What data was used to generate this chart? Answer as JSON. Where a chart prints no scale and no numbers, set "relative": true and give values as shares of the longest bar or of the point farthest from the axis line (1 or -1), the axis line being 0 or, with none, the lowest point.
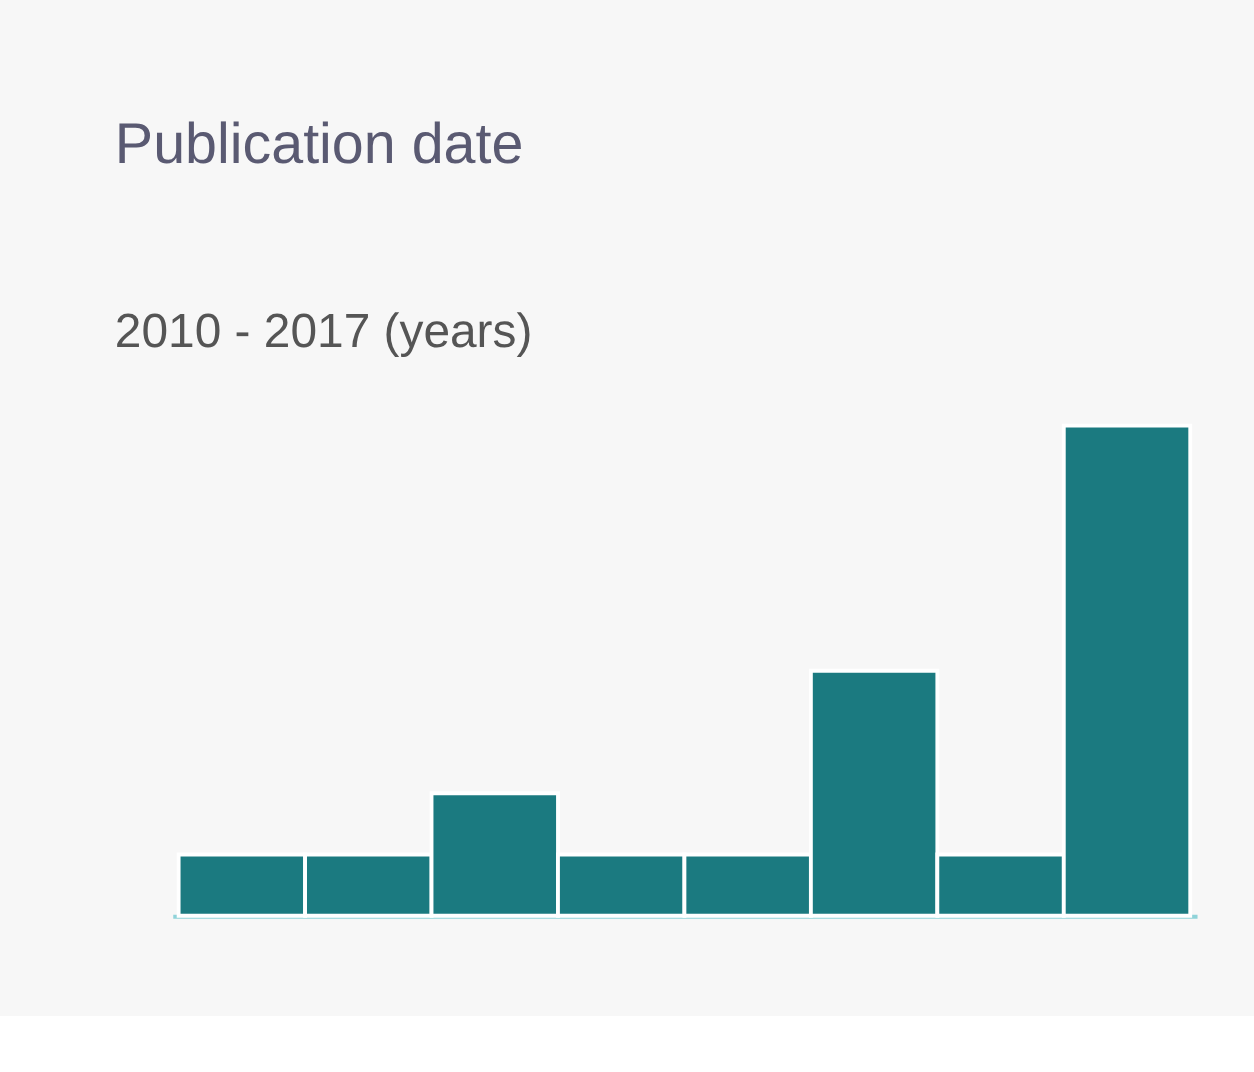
{
  "chart_data": {
    "type": "bar",
    "title": "Publication date",
    "subtitle": "2010 - 2017 (years)",
    "categories": [
      null,
      null,
      null,
      null,
      null,
      null,
      null,
      null
    ],
    "values": [
      0.125,
      0.125,
      0.25,
      0.125,
      0.125,
      0.5,
      0.125,
      1
    ],
    "color": "#1b7a80",
    "relative": true,
    "grid": false,
    "tick_labels": false
  }
}
